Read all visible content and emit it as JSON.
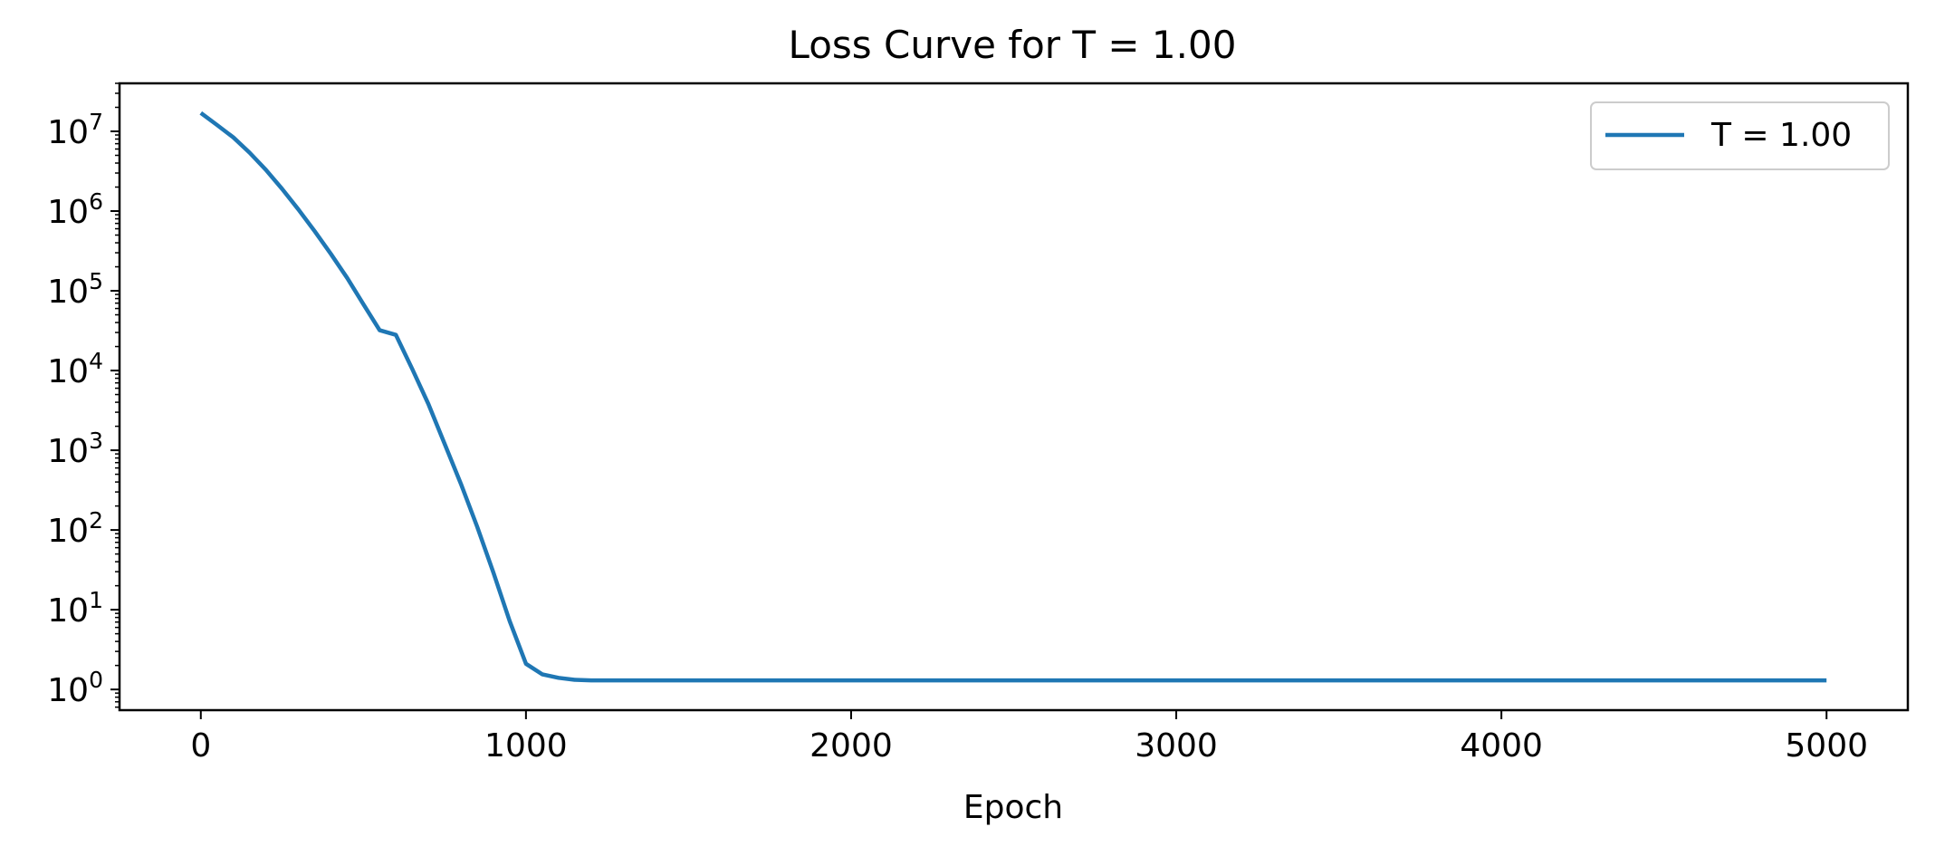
{
  "chart_data": {
    "type": "line",
    "title": "Loss Curve for T = 1.00",
    "xlabel": "Epoch",
    "ylabel": "",
    "xlim": [
      -250,
      5250
    ],
    "ylim": [
      0.55,
      40000000
    ],
    "yscale": "log",
    "xticks": [
      0,
      1000,
      2000,
      3000,
      4000,
      5000
    ],
    "xtick_labels": [
      "0",
      "1000",
      "2000",
      "3000",
      "4000",
      "5000"
    ],
    "yticks": [
      1,
      10,
      100,
      1000,
      10000,
      100000,
      1000000,
      10000000
    ],
    "ytick_labels": [
      {
        "base": "10",
        "exp": "0"
      },
      {
        "base": "10",
        "exp": "1"
      },
      {
        "base": "10",
        "exp": "2"
      },
      {
        "base": "10",
        "exp": "3"
      },
      {
        "base": "10",
        "exp": "4"
      },
      {
        "base": "10",
        "exp": "5"
      },
      {
        "base": "10",
        "exp": "6"
      },
      {
        "base": "10",
        "exp": "7"
      }
    ],
    "grid": false,
    "legend_position": "top-right",
    "series": [
      {
        "name": "T = 1.00",
        "color": "#1f77b4",
        "x": [
          0,
          50,
          100,
          150,
          200,
          250,
          300,
          350,
          400,
          450,
          500,
          550,
          600,
          650,
          700,
          750,
          800,
          850,
          900,
          950,
          1000,
          1050,
          1100,
          1150,
          1200,
          1250,
          1500,
          2000,
          2500,
          3000,
          3500,
          4000,
          4500,
          5000
        ],
        "y": [
          17000000,
          12000000,
          8400000,
          5400000,
          3300000,
          1900000,
          1050000,
          560000,
          290000,
          145000,
          68000,
          32000,
          28000,
          10500,
          3800,
          1200,
          380,
          110,
          29,
          7.2,
          2.1,
          1.55,
          1.4,
          1.32,
          1.3,
          1.3,
          1.3,
          1.3,
          1.3,
          1.3,
          1.3,
          1.3,
          1.3,
          1.3
        ]
      }
    ]
  }
}
